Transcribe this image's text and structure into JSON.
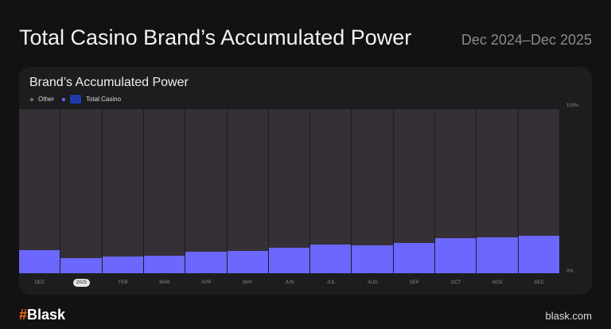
{
  "header": {
    "title": "Total Casino Brand’s Accumulated Power",
    "range": "Dec 2024–Dec 2025"
  },
  "footer": {
    "brand_symbol": "#",
    "brand": "Blask",
    "site": "blask.com"
  },
  "colors": {
    "other": "#343036",
    "total_casino": "#6c68fe",
    "background": "#121212",
    "card": "#1d1d1f"
  },
  "chart_data": {
    "type": "bar",
    "stacked": true,
    "title": "Brand’s Accumulated Power",
    "legend": [
      "Other",
      "Total Casino"
    ],
    "categories": [
      "DEC",
      "2025",
      "FEB",
      "MAR",
      "APR",
      "MAY",
      "JUN",
      "JUL",
      "AUG",
      "SEP",
      "OCT",
      "NOV",
      "DEC"
    ],
    "highlight_category": 1,
    "series": [
      {
        "name": "Total Casino",
        "values": [
          14,
          9.2,
          10,
          10.7,
          13,
          13.6,
          15.5,
          17.5,
          17.2,
          18.4,
          21.4,
          21.8,
          22.8
        ]
      },
      {
        "name": "Other",
        "values": [
          86,
          90.8,
          90,
          89.3,
          87,
          86.4,
          84.5,
          82.5,
          82.8,
          81.6,
          78.6,
          78.2,
          77.2
        ]
      }
    ],
    "yticks": [
      "100%",
      "0%"
    ],
    "ylim": [
      0,
      100
    ],
    "unit": "%"
  }
}
